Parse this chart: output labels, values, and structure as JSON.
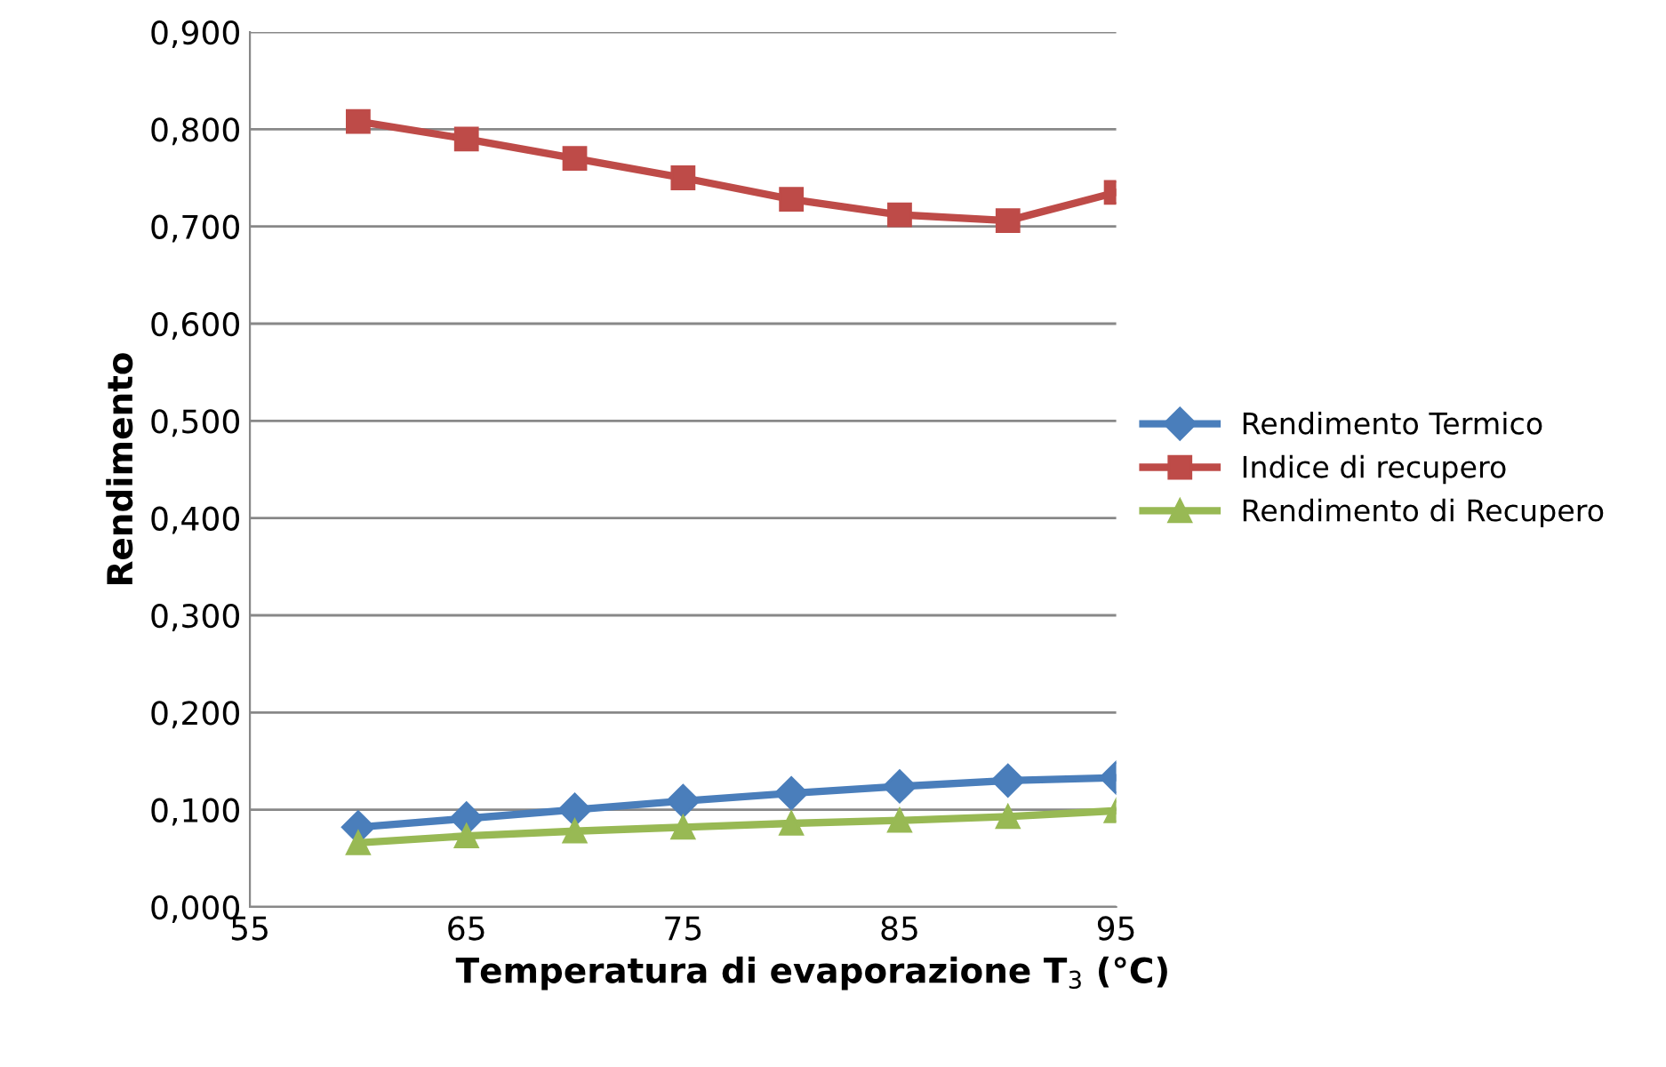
{
  "chart_data": {
    "type": "line",
    "xlabel": "Temperatura di evaporazione T$_{3}$ (°C)",
    "ylabel": "Rendimento",
    "x": [
      60,
      65,
      70,
      75,
      80,
      85,
      90,
      95
    ],
    "series": [
      {
        "name": "Rendimento Termico",
        "color": "#4a7ebb",
        "marker": "diamond",
        "values": [
          0.082,
          0.091,
          0.1,
          0.109,
          0.117,
          0.124,
          0.13,
          0.133
        ]
      },
      {
        "name": "Indice di recupero",
        "color": "#be4b48",
        "marker": "square",
        "values": [
          0.808,
          0.79,
          0.77,
          0.75,
          0.728,
          0.712,
          0.706,
          0.735
        ]
      },
      {
        "name": "Rendimento di Recupero",
        "color": "#98b954",
        "marker": "triangle",
        "values": [
          0.066,
          0.073,
          0.078,
          0.082,
          0.086,
          0.089,
          0.093,
          0.099
        ]
      }
    ],
    "xlim": [
      55,
      95
    ],
    "xticks": [
      55,
      65,
      75,
      85,
      95
    ],
    "ylim": [
      0,
      0.9
    ],
    "yticks": [
      {
        "value": 0,
        "label": "0,000"
      },
      {
        "value": 0.1,
        "label": "0,100"
      },
      {
        "value": 0.2,
        "label": "0,200"
      },
      {
        "value": 0.3,
        "label": "0,300"
      },
      {
        "value": 0.4,
        "label": "0,400"
      },
      {
        "value": 0.5,
        "label": "0,500"
      },
      {
        "value": 0.6,
        "label": "0,600"
      },
      {
        "value": 0.7,
        "label": "0,700"
      },
      {
        "value": 0.8,
        "label": "0,800"
      },
      {
        "value": 0.9,
        "label": "0,900"
      }
    ],
    "grid": "y",
    "legend": "right",
    "line_style": "solid"
  }
}
